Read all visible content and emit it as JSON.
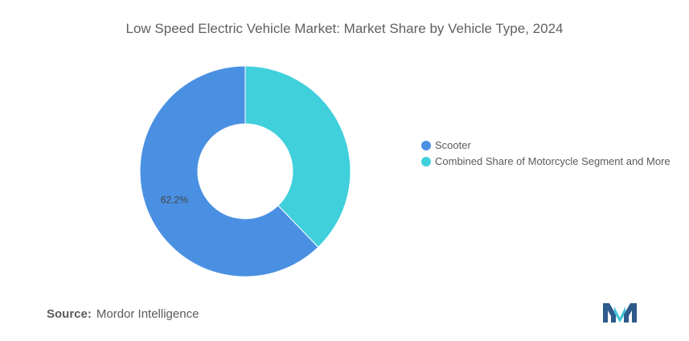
{
  "chart_data": {
    "type": "pie",
    "title": "Low Speed Electric Vehicle Market: Market Share by Vehicle Type, 2024",
    "donut": true,
    "categories": [
      "Scooter",
      "Combined Share of Motorcycle Segment and More"
    ],
    "values": [
      62.2,
      37.8
    ],
    "value_unit": "%",
    "data_labels": [
      "62.2%",
      ""
    ],
    "colors": [
      "#4a90e2",
      "#40d0dc"
    ],
    "legend_position": "right"
  },
  "source": {
    "label": "Source:",
    "text": "Mordor Intelligence"
  },
  "logo": {
    "icon": "mordor-intelligence-logo-icon",
    "colors": [
      "#2e5a8c",
      "#3fc4d4"
    ]
  }
}
